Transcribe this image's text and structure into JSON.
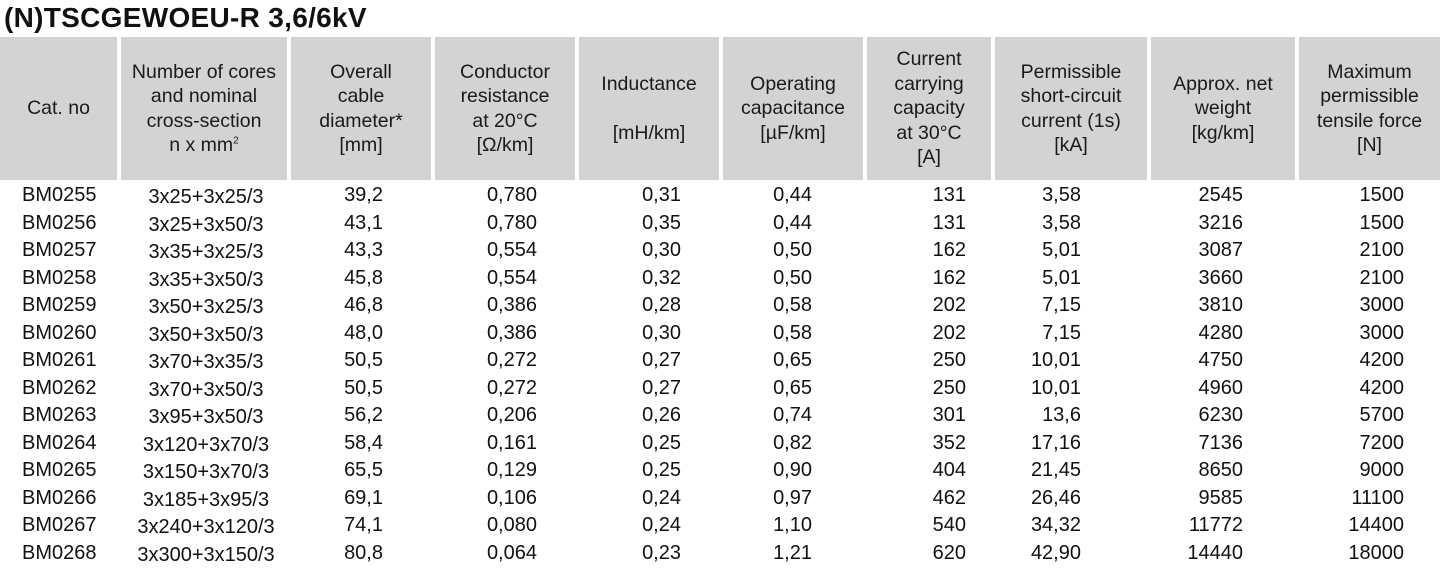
{
  "title": "(N)TSCGEWOEU-R 3,6/6kV",
  "headers": [
    {
      "lines": [
        "Cat. no"
      ]
    },
    {
      "lines": [
        "Number of cores",
        "and nominal",
        "cross-section"
      ],
      "last_pre": "n x mm",
      "last_sup": "2"
    },
    {
      "lines": [
        "Overall",
        "cable",
        "diameter*",
        "[mm]"
      ]
    },
    {
      "lines": [
        "Conductor",
        "resistance",
        "at 20°C",
        "[Ω/km]"
      ]
    },
    {
      "lines": [
        "Inductance",
        "",
        "[mH/km]"
      ]
    },
    {
      "lines": [
        "Operating",
        "capacitance",
        "[µF/km]"
      ]
    },
    {
      "lines": [
        "Current",
        "carrying",
        "capacity",
        "at 30°C",
        "[A]"
      ]
    },
    {
      "lines": [
        "Permissible",
        "short-circuit",
        "current (1s)",
        "[kA]"
      ]
    },
    {
      "lines": [
        "Approx. net",
        "weight",
        "[kg/km]"
      ]
    },
    {
      "lines": [
        "Maximum",
        "permissible",
        "tensile force",
        "[N]"
      ]
    }
  ],
  "rows": [
    [
      "BM0255",
      "3x25+3x25/3",
      "39,2",
      "0,780",
      "0,31",
      "0,44",
      "131",
      "3,58",
      "2545",
      "1500"
    ],
    [
      "BM0256",
      "3x25+3x50/3",
      "43,1",
      "0,780",
      "0,35",
      "0,44",
      "131",
      "3,58",
      "3216",
      "1500"
    ],
    [
      "BM0257",
      "3x35+3x25/3",
      "43,3",
      "0,554",
      "0,30",
      "0,50",
      "162",
      "5,01",
      "3087",
      "2100"
    ],
    [
      "BM0258",
      "3x35+3x50/3",
      "45,8",
      "0,554",
      "0,32",
      "0,50",
      "162",
      "5,01",
      "3660",
      "2100"
    ],
    [
      "BM0259",
      "3x50+3x25/3",
      "46,8",
      "0,386",
      "0,28",
      "0,58",
      "202",
      "7,15",
      "3810",
      "3000"
    ],
    [
      "BM0260",
      "3x50+3x50/3",
      "48,0",
      "0,386",
      "0,30",
      "0,58",
      "202",
      "7,15",
      "4280",
      "3000"
    ],
    [
      "BM0261",
      "3x70+3x35/3",
      "50,5",
      "0,272",
      "0,27",
      "0,65",
      "250",
      "10,01",
      "4750",
      "4200"
    ],
    [
      "BM0262",
      "3x70+3x50/3",
      "50,5",
      "0,272",
      "0,27",
      "0,65",
      "250",
      "10,01",
      "4960",
      "4200"
    ],
    [
      "BM0263",
      "3x95+3x50/3",
      "56,2",
      "0,206",
      "0,26",
      "0,74",
      "301",
      "13,6",
      "6230",
      "5700"
    ],
    [
      "BM0264",
      "3x120+3x70/3",
      "58,4",
      "0,161",
      "0,25",
      "0,82",
      "352",
      "17,16",
      "7136",
      "7200"
    ],
    [
      "BM0265",
      "3x150+3x70/3",
      "65,5",
      "0,129",
      "0,25",
      "0,90",
      "404",
      "21,45",
      "8650",
      "9000"
    ],
    [
      "BM0266",
      "3x185+3x95/3",
      "69,1",
      "0,106",
      "0,24",
      "0,97",
      "462",
      "26,46",
      "9585",
      "11100"
    ],
    [
      "BM0267",
      "3x240+3x120/3",
      "74,1",
      "0,080",
      "0,24",
      "1,10",
      "540",
      "34,32",
      "11772",
      "14400"
    ],
    [
      "BM0268",
      "3x300+3x150/3",
      "80,8",
      "0,064",
      "0,23",
      "1,21",
      "620",
      "42,90",
      "14440",
      "18000"
    ]
  ]
}
